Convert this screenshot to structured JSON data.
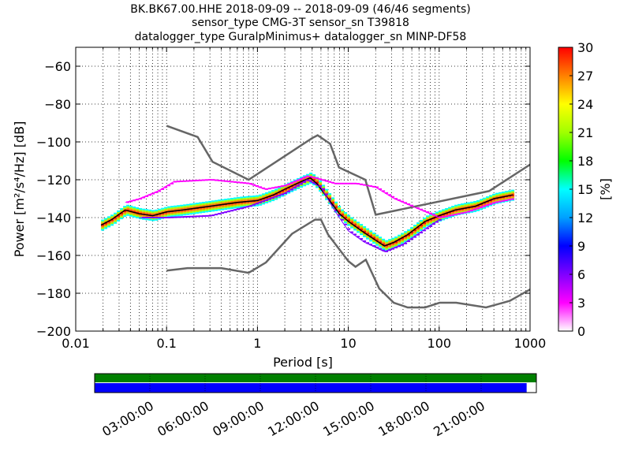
{
  "title_lines": [
    "BK.BK67.00.HHE   2018-09-09 -- 2018-09-09  (46/46 segments)",
    "sensor_type CMG-3T sensor_sn T39818",
    "datalogger_type GuralpMinimus+ datalogger_sn MINP-DF58"
  ],
  "chart_data": {
    "type": "heatmap",
    "subtype": "probabilistic power spectral density",
    "xlabel": "Period [s]",
    "ylabel": "Power [m²/s⁴/Hz] [dB]",
    "xscale": "log",
    "xlim": [
      0.01,
      1000
    ],
    "ylim": [
      -200,
      -50
    ],
    "x_ticks": [
      0.01,
      0.1,
      1,
      10,
      100,
      1000
    ],
    "x_tick_labels": [
      "0.01",
      "0.1",
      "1",
      "10",
      "100",
      "1000"
    ],
    "y_ticks": [
      -200,
      -180,
      -160,
      -140,
      -120,
      -100,
      -80,
      -60
    ],
    "y_tick_labels": [
      "−200",
      "−180",
      "−160",
      "−140",
      "−120",
      "−100",
      "−80",
      "−60"
    ],
    "grid": "dotted vertical (log minor) and horizontal",
    "colorbar": {
      "label": "[%]",
      "range": [
        0,
        30
      ],
      "ticks": [
        0,
        3,
        6,
        9,
        12,
        15,
        18,
        21,
        24,
        27,
        30
      ],
      "tick_labels": [
        "0",
        "3",
        "6",
        "9",
        "12",
        "15",
        "18",
        "21",
        "24",
        "27",
        "30"
      ],
      "colors": [
        "#ffffff",
        "#ff00ff",
        "#8000ff",
        "#0000ff",
        "#00a0ff",
        "#00ffff",
        "#00ff00",
        "#a0ff00",
        "#ffff00",
        "#ff8000",
        "#ff0000"
      ]
    },
    "noise_models": {
      "high": [
        [
          0.1,
          -91.5
        ],
        [
          0.22,
          -97.4
        ],
        [
          0.32,
          -110.5
        ],
        [
          0.8,
          -120
        ],
        [
          4.0,
          -98
        ],
        [
          4.6,
          -96.5
        ],
        [
          6.3,
          -101
        ],
        [
          7.9,
          -113.5
        ],
        [
          15.4,
          -120
        ],
        [
          20,
          -138.5
        ],
        [
          354,
          -126
        ],
        [
          1000,
          -112
        ]
      ],
      "low": [
        [
          0.1,
          -168
        ],
        [
          0.17,
          -166.7
        ],
        [
          0.4,
          -166.7
        ],
        [
          0.8,
          -169.2
        ],
        [
          1.24,
          -163.7
        ],
        [
          2.4,
          -148.6
        ],
        [
          4.3,
          -141.1
        ],
        [
          5.0,
          -141.1
        ],
        [
          6.0,
          -149
        ],
        [
          10,
          -163
        ],
        [
          12,
          -166
        ],
        [
          15.6,
          -162.3
        ],
        [
          21.9,
          -177.5
        ],
        [
          31.6,
          -185
        ],
        [
          45,
          -187.5
        ],
        [
          70,
          -187.5
        ],
        [
          101,
          -185
        ],
        [
          154,
          -185
        ],
        [
          328,
          -187.5
        ],
        [
          600,
          -184
        ],
        [
          1000,
          -178
        ]
      ]
    },
    "series": [
      {
        "name": "",
        "role": "main",
        "color": "#000000",
        "points": [
          [
            0.019,
            -144
          ],
          [
            0.025,
            -141
          ],
          [
            0.035,
            -136
          ],
          [
            0.05,
            -138
          ],
          [
            0.07,
            -139
          ],
          [
            0.1,
            -137
          ],
          [
            0.15,
            -136
          ],
          [
            0.3,
            -134
          ],
          [
            0.6,
            -132
          ],
          [
            1.0,
            -131
          ],
          [
            1.5,
            -128
          ],
          [
            2.0,
            -125
          ],
          [
            3.0,
            -121
          ],
          [
            3.8,
            -119
          ],
          [
            4.5,
            -122
          ],
          [
            6.0,
            -130
          ],
          [
            8.0,
            -138
          ],
          [
            10,
            -142
          ],
          [
            15,
            -148
          ],
          [
            20,
            -152
          ],
          [
            25,
            -155
          ],
          [
            32,
            -153
          ],
          [
            45,
            -149
          ],
          [
            70,
            -142
          ],
          [
            100,
            -139
          ],
          [
            150,
            -136
          ],
          [
            250,
            -134
          ],
          [
            400,
            -130
          ],
          [
            650,
            -128
          ]
        ]
      },
      {
        "name": "",
        "role": "upper branch",
        "color": "#ff00ff",
        "points": [
          [
            0.035,
            -132
          ],
          [
            0.05,
            -130
          ],
          [
            0.08,
            -126
          ],
          [
            0.12,
            -121
          ],
          [
            0.3,
            -120
          ],
          [
            0.8,
            -122
          ],
          [
            1.2,
            -125
          ],
          [
            2.0,
            -123
          ],
          [
            3.5,
            -118
          ],
          [
            5.0,
            -120
          ],
          [
            7.0,
            -122
          ],
          [
            12,
            -122
          ],
          [
            20,
            -124
          ],
          [
            32,
            -130
          ],
          [
            50,
            -134
          ],
          [
            100,
            -140
          ],
          [
            200,
            -137
          ],
          [
            400,
            -132
          ],
          [
            650,
            -130
          ]
        ]
      },
      {
        "name": "",
        "role": "lower branch",
        "color": "#8000ff",
        "points": [
          [
            0.05,
            -140
          ],
          [
            0.1,
            -140
          ],
          [
            0.3,
            -139
          ],
          [
            0.8,
            -134
          ],
          [
            2.0,
            -127
          ],
          [
            3.5,
            -120
          ],
          [
            5.0,
            -124
          ],
          [
            7.0,
            -136
          ],
          [
            10,
            -147
          ],
          [
            15,
            -153
          ],
          [
            25,
            -158
          ],
          [
            40,
            -154
          ],
          [
            70,
            -146
          ],
          [
            100,
            -141
          ]
        ]
      }
    ]
  },
  "timeline": {
    "tick_labels": [
      "03:00:00",
      "06:00:00",
      "09:00:00",
      "12:00:00",
      "15:00:00",
      "18:00:00",
      "21:00:00"
    ],
    "coverage_fraction": 0.978,
    "colors": {
      "top": "#008000",
      "bottom": "#0000ff"
    }
  }
}
